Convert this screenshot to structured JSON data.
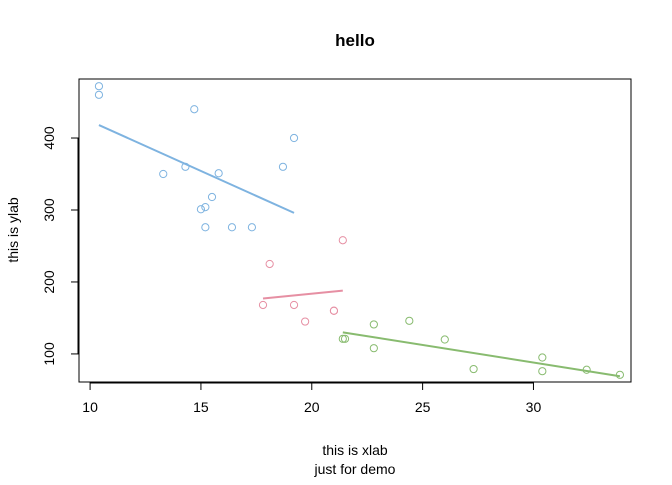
{
  "chart_data": {
    "type": "scatter",
    "title": "hello",
    "xlabel": "this is xlab",
    "xlabel_line2": "just for demo",
    "ylabel": "this is ylab",
    "xlim": [
      9.5,
      34.4
    ],
    "ylim": [
      61,
      482
    ],
    "x_ticks": [
      10,
      15,
      20,
      25,
      30
    ],
    "x_tick_labels": [
      "10",
      "15",
      "20",
      "25",
      "30"
    ],
    "y_ticks": [
      100,
      200,
      300,
      400
    ],
    "y_tick_labels": [
      "100",
      "200",
      "300",
      "400"
    ],
    "grid": false,
    "legend": "none",
    "series": [
      {
        "color": "#7EB3E0",
        "points": [
          {
            "x": 10.4,
            "y": 472
          },
          {
            "x": 10.4,
            "y": 460
          },
          {
            "x": 14.7,
            "y": 440
          },
          {
            "x": 19.2,
            "y": 400
          },
          {
            "x": 18.7,
            "y": 360
          },
          {
            "x": 14.3,
            "y": 360
          },
          {
            "x": 13.3,
            "y": 350
          },
          {
            "x": 15.8,
            "y": 351
          },
          {
            "x": 15.5,
            "y": 318
          },
          {
            "x": 15.2,
            "y": 304
          },
          {
            "x": 15.0,
            "y": 301
          },
          {
            "x": 15.2,
            "y": 276
          },
          {
            "x": 16.4,
            "y": 276
          },
          {
            "x": 17.3,
            "y": 276
          }
        ],
        "fit": {
          "x": [
            10.4,
            19.2
          ],
          "y": [
            418,
            296
          ]
        }
      },
      {
        "color": "#E68FA3",
        "points": [
          {
            "x": 21.4,
            "y": 258
          },
          {
            "x": 18.1,
            "y": 225
          },
          {
            "x": 17.8,
            "y": 168
          },
          {
            "x": 19.2,
            "y": 168
          },
          {
            "x": 21.0,
            "y": 160
          },
          {
            "x": 21.0,
            "y": 160
          },
          {
            "x": 19.7,
            "y": 145
          }
        ],
        "fit": {
          "x": [
            17.8,
            21.4
          ],
          "y": [
            177,
            188
          ]
        }
      },
      {
        "color": "#88BB6F",
        "points": [
          {
            "x": 24.4,
            "y": 146
          },
          {
            "x": 22.8,
            "y": 141
          },
          {
            "x": 26.0,
            "y": 120
          },
          {
            "x": 21.4,
            "y": 121
          },
          {
            "x": 21.5,
            "y": 121
          },
          {
            "x": 22.8,
            "y": 108
          },
          {
            "x": 30.4,
            "y": 95
          },
          {
            "x": 32.4,
            "y": 78
          },
          {
            "x": 27.3,
            "y": 79
          },
          {
            "x": 30.4,
            "y": 76
          },
          {
            "x": 33.9,
            "y": 71
          }
        ],
        "fit": {
          "x": [
            21.4,
            33.9
          ],
          "y": [
            130,
            69
          ]
        }
      }
    ]
  }
}
